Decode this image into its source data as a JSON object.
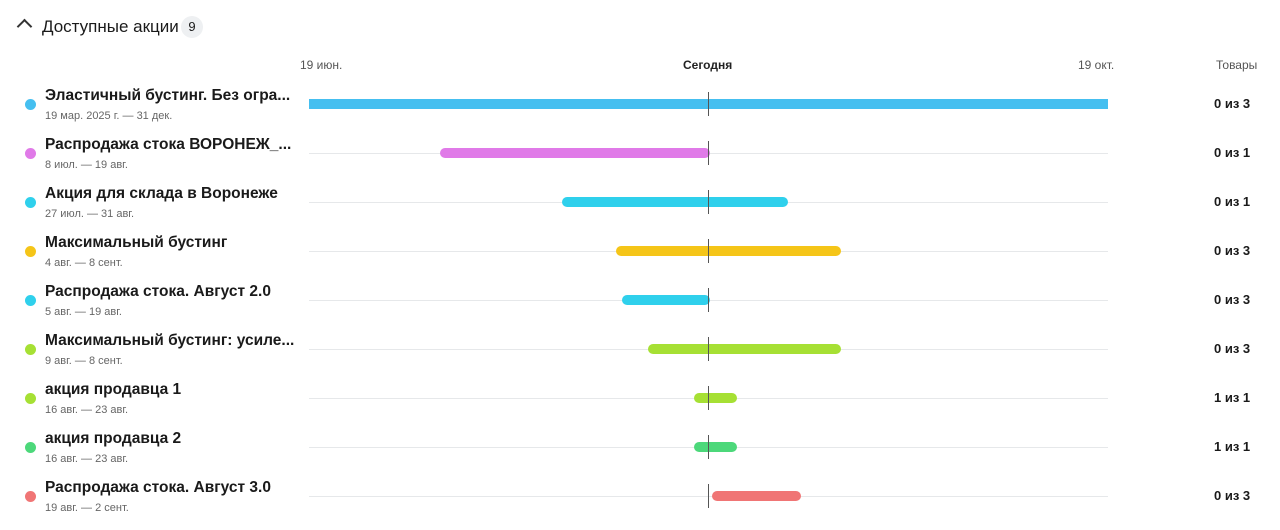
{
  "header": {
    "title": "Доступные акции",
    "count": "9"
  },
  "columns": {
    "start": "19 июн.",
    "today": "Сегодня",
    "end": "19 окт.",
    "goods": "Товары"
  },
  "rows": [
    {
      "name": "Эластичный бустинг. Без огра...",
      "dates": "19 мар. 2025 г. — 31 дек.",
      "goods": "0 из 3",
      "color": "#45bff0"
    },
    {
      "name": "Распродажа стока ВОРОНЕЖ_...",
      "dates": "8 июл. — 19 авг.",
      "goods": "0 из 1",
      "color": "#e07ae8"
    },
    {
      "name": "Акция для склада в Воронеже",
      "dates": "27 июл. — 31 авг.",
      "goods": "0 из 1",
      "color": "#2fd0ec"
    },
    {
      "name": "Максимальный бустинг",
      "dates": "4 авг. — 8 сент.",
      "goods": "0 из 3",
      "color": "#f5c518"
    },
    {
      "name": "Распродажа стока. Август 2.0",
      "dates": "5 авг. — 19 авг.",
      "goods": "0 из 3",
      "color": "#2fd0ec"
    },
    {
      "name": "Максимальный бустинг: усиле...",
      "dates": "9 авг. — 8 сент.",
      "goods": "0 из 3",
      "color": "#a6e034"
    },
    {
      "name": "акция продавца 1",
      "dates": "16 авг. — 23 авг.",
      "goods": "1 из 1",
      "color": "#a6e034"
    },
    {
      "name": "акция продавца 2",
      "dates": "16 авг. — 23 авг.",
      "goods": "1 из 1",
      "color": "#4cd87a"
    },
    {
      "name": "Распродажа стока. Август 3.0",
      "dates": "19 авг. — 2 сент.",
      "goods": "0 из 3",
      "color": "#f07575"
    }
  ]
}
